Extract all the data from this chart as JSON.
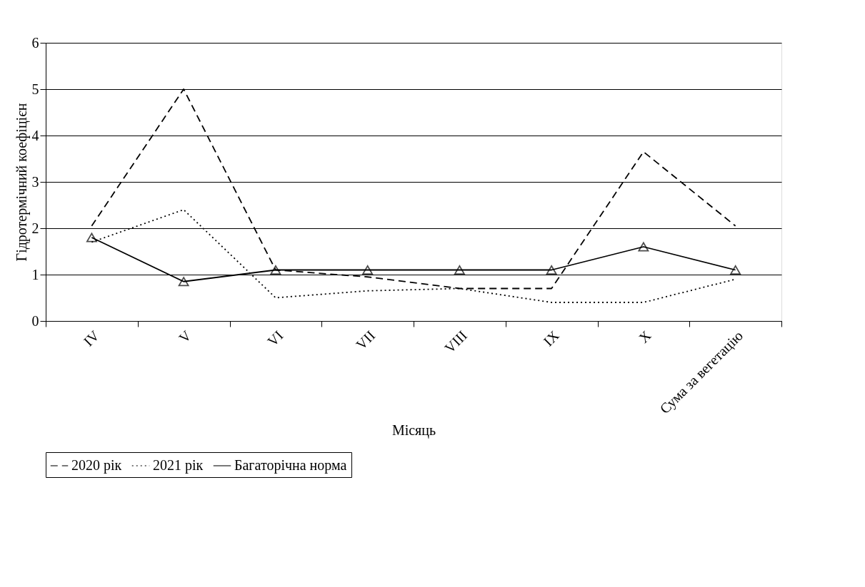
{
  "chart_data": {
    "type": "line",
    "xlabel": "Місяць",
    "ylabel": "Гідротермічний коефіцієн",
    "categories": [
      "IV",
      "V",
      "VI",
      "VII",
      "VIII",
      "IX",
      "X",
      "Сума за вегетацію"
    ],
    "series": [
      {
        "name": "2020 рік",
        "color": "#000000",
        "line_style": "dashed",
        "marker": "none",
        "values": [
          2.05,
          5.0,
          1.1,
          0.95,
          0.7,
          0.7,
          3.65,
          2.05
        ]
      },
      {
        "name": "2021 рік",
        "color": "#000000",
        "line_style": "dotted",
        "marker": "none",
        "values": [
          1.7,
          2.4,
          0.5,
          0.65,
          0.7,
          0.4,
          0.4,
          0.9
        ]
      },
      {
        "name": "Багаторічна норма",
        "color": "#000000",
        "line_style": "solid",
        "marker": "triangle",
        "values": [
          1.8,
          0.85,
          1.1,
          1.1,
          1.1,
          1.1,
          1.6,
          1.1
        ]
      }
    ],
    "ylim": [
      0,
      6
    ],
    "yticks": [
      0,
      1,
      2,
      3,
      4,
      5,
      6
    ],
    "grid": "y",
    "legend": "bottom"
  }
}
